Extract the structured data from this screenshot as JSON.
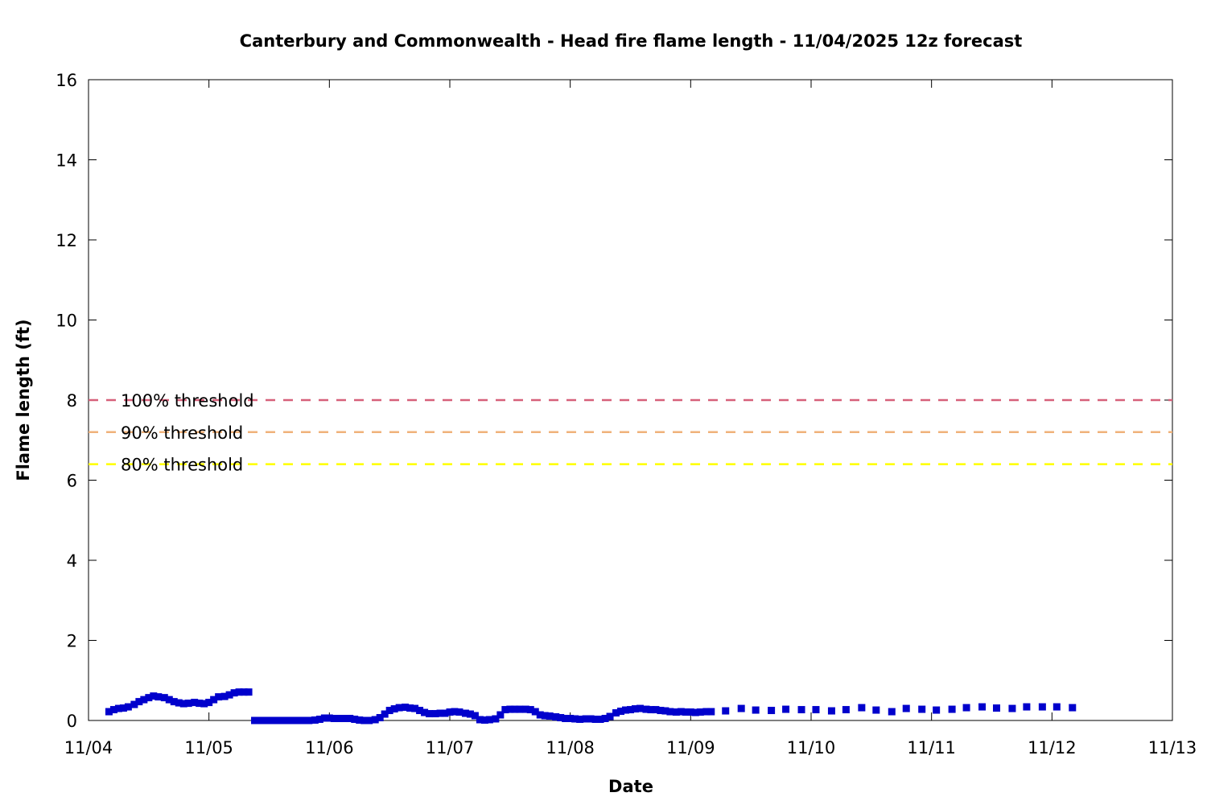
{
  "chart_data": {
    "type": "scatter",
    "title": "Canterbury and Commonwealth - Head fire flame length - 11/04/2025 12z forecast",
    "xlabel": "Date",
    "ylabel": "Flame length (ft)",
    "xlim": [
      "11/04",
      "11/13"
    ],
    "ylim": [
      0,
      16
    ],
    "x_ticks": [
      "11/04",
      "11/05",
      "11/06",
      "11/07",
      "11/08",
      "11/09",
      "11/10",
      "11/11",
      "11/12",
      "11/13"
    ],
    "y_ticks": [
      0,
      2,
      4,
      6,
      8,
      10,
      12,
      14,
      16
    ],
    "grid": false,
    "thresholds": [
      {
        "name": "100% threshold",
        "value": 8.0,
        "color": "#d6607a"
      },
      {
        "name": "90% threshold",
        "value": 7.2,
        "color": "#f0b27a"
      },
      {
        "name": "80% threshold",
        "value": 6.4,
        "color": "#ffff00"
      }
    ],
    "series": [
      {
        "color": "#0000cc",
        "x_unit": "days since 11/04 00z",
        "points": [
          [
            0.17,
            0.22
          ],
          [
            0.21,
            0.27
          ],
          [
            0.25,
            0.3
          ],
          [
            0.29,
            0.31
          ],
          [
            0.33,
            0.34
          ],
          [
            0.38,
            0.4
          ],
          [
            0.42,
            0.47
          ],
          [
            0.46,
            0.52
          ],
          [
            0.5,
            0.57
          ],
          [
            0.54,
            0.61
          ],
          [
            0.58,
            0.59
          ],
          [
            0.63,
            0.57
          ],
          [
            0.67,
            0.52
          ],
          [
            0.71,
            0.47
          ],
          [
            0.75,
            0.44
          ],
          [
            0.79,
            0.42
          ],
          [
            0.83,
            0.43
          ],
          [
            0.88,
            0.45
          ],
          [
            0.92,
            0.43
          ],
          [
            0.96,
            0.42
          ],
          [
            1.0,
            0.45
          ],
          [
            1.04,
            0.52
          ],
          [
            1.08,
            0.59
          ],
          [
            1.13,
            0.6
          ],
          [
            1.17,
            0.64
          ],
          [
            1.21,
            0.69
          ],
          [
            1.25,
            0.71
          ],
          [
            1.29,
            0.71
          ],
          [
            1.33,
            0.71
          ],
          [
            1.38,
            0.0
          ],
          [
            1.42,
            0.0
          ],
          [
            1.46,
            0.0
          ],
          [
            1.5,
            0.0
          ],
          [
            1.54,
            0.0
          ],
          [
            1.58,
            0.0
          ],
          [
            1.63,
            0.0
          ],
          [
            1.67,
            0.0
          ],
          [
            1.71,
            0.0
          ],
          [
            1.75,
            0.0
          ],
          [
            1.79,
            0.0
          ],
          [
            1.83,
            0.0
          ],
          [
            1.88,
            0.01
          ],
          [
            1.92,
            0.03
          ],
          [
            1.96,
            0.06
          ],
          [
            2.0,
            0.06
          ],
          [
            2.04,
            0.05
          ],
          [
            2.08,
            0.05
          ],
          [
            2.13,
            0.05
          ],
          [
            2.17,
            0.05
          ],
          [
            2.21,
            0.03
          ],
          [
            2.25,
            0.01
          ],
          [
            2.29,
            0.0
          ],
          [
            2.33,
            0.0
          ],
          [
            2.38,
            0.02
          ],
          [
            2.42,
            0.07
          ],
          [
            2.46,
            0.16
          ],
          [
            2.5,
            0.25
          ],
          [
            2.54,
            0.29
          ],
          [
            2.58,
            0.32
          ],
          [
            2.63,
            0.33
          ],
          [
            2.67,
            0.31
          ],
          [
            2.71,
            0.3
          ],
          [
            2.75,
            0.25
          ],
          [
            2.79,
            0.2
          ],
          [
            2.83,
            0.17
          ],
          [
            2.88,
            0.17
          ],
          [
            2.92,
            0.18
          ],
          [
            2.96,
            0.18
          ],
          [
            3.0,
            0.21
          ],
          [
            3.04,
            0.22
          ],
          [
            3.08,
            0.21
          ],
          [
            3.13,
            0.18
          ],
          [
            3.17,
            0.16
          ],
          [
            3.21,
            0.12
          ],
          [
            3.25,
            0.02
          ],
          [
            3.29,
            0.01
          ],
          [
            3.33,
            0.02
          ],
          [
            3.38,
            0.04
          ],
          [
            3.42,
            0.14
          ],
          [
            3.46,
            0.27
          ],
          [
            3.5,
            0.28
          ],
          [
            3.54,
            0.28
          ],
          [
            3.58,
            0.28
          ],
          [
            3.63,
            0.28
          ],
          [
            3.67,
            0.27
          ],
          [
            3.71,
            0.22
          ],
          [
            3.75,
            0.14
          ],
          [
            3.79,
            0.12
          ],
          [
            3.83,
            0.11
          ],
          [
            3.88,
            0.09
          ],
          [
            3.92,
            0.07
          ],
          [
            3.96,
            0.05
          ],
          [
            4.0,
            0.05
          ],
          [
            4.04,
            0.04
          ],
          [
            4.08,
            0.03
          ],
          [
            4.13,
            0.04
          ],
          [
            4.17,
            0.04
          ],
          [
            4.21,
            0.03
          ],
          [
            4.25,
            0.03
          ],
          [
            4.29,
            0.05
          ],
          [
            4.33,
            0.1
          ],
          [
            4.38,
            0.19
          ],
          [
            4.42,
            0.23
          ],
          [
            4.46,
            0.26
          ],
          [
            4.5,
            0.27
          ],
          [
            4.54,
            0.29
          ],
          [
            4.58,
            0.3
          ],
          [
            4.63,
            0.28
          ],
          [
            4.67,
            0.27
          ],
          [
            4.71,
            0.27
          ],
          [
            4.75,
            0.25
          ],
          [
            4.79,
            0.24
          ],
          [
            4.83,
            0.22
          ],
          [
            4.88,
            0.21
          ],
          [
            4.92,
            0.22
          ],
          [
            4.96,
            0.21
          ],
          [
            5.0,
            0.21
          ],
          [
            5.04,
            0.2
          ],
          [
            5.08,
            0.21
          ],
          [
            5.13,
            0.22
          ],
          [
            5.17,
            0.22
          ],
          [
            5.29,
            0.24
          ],
          [
            5.42,
            0.3
          ],
          [
            5.54,
            0.26
          ],
          [
            5.67,
            0.25
          ],
          [
            5.79,
            0.28
          ],
          [
            5.92,
            0.27
          ],
          [
            6.04,
            0.27
          ],
          [
            6.17,
            0.24
          ],
          [
            6.29,
            0.27
          ],
          [
            6.42,
            0.32
          ],
          [
            6.54,
            0.26
          ],
          [
            6.67,
            0.22
          ],
          [
            6.79,
            0.3
          ],
          [
            6.92,
            0.28
          ],
          [
            7.04,
            0.26
          ],
          [
            7.17,
            0.28
          ],
          [
            7.29,
            0.32
          ],
          [
            7.42,
            0.34
          ],
          [
            7.54,
            0.31
          ],
          [
            7.67,
            0.3
          ],
          [
            7.79,
            0.34
          ],
          [
            7.92,
            0.34
          ],
          [
            8.04,
            0.34
          ],
          [
            8.17,
            0.32
          ]
        ]
      }
    ]
  }
}
